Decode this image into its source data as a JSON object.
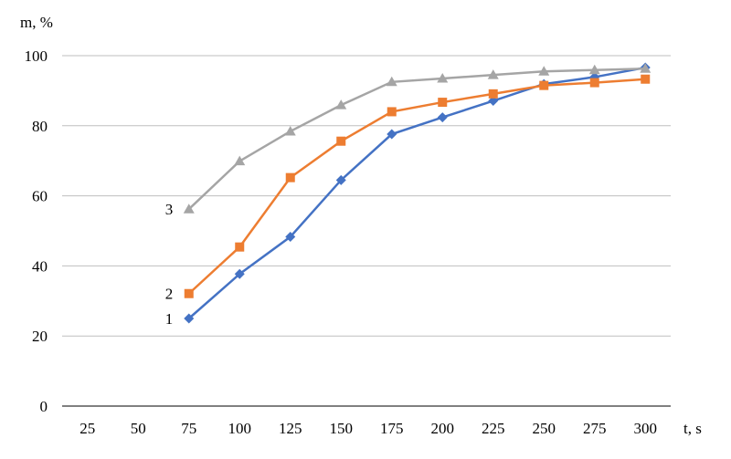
{
  "chart_data": {
    "type": "line",
    "ylabel": "m, %",
    "xlabel": "t, s",
    "x_ticks": [
      "25",
      "50",
      "75",
      "100",
      "125",
      "150",
      "175",
      "200",
      "225",
      "250",
      "275",
      "300"
    ],
    "y_ticks": [
      "0",
      "20",
      "40",
      "60",
      "80",
      "100"
    ],
    "ylim": [
      0,
      100
    ],
    "grid": true,
    "series": [
      {
        "name": "1",
        "color": "#4472C4",
        "marker": "diamond",
        "x": [
          75,
          100,
          125,
          150,
          175,
          200,
          225,
          250,
          275,
          300
        ],
        "values": [
          25,
          37.7,
          48.3,
          64.5,
          77.6,
          82.4,
          87.1,
          91.9,
          93.9,
          96.6
        ]
      },
      {
        "name": "2",
        "color": "#ED7D31",
        "marker": "square",
        "x": [
          75,
          100,
          125,
          150,
          175,
          200,
          225,
          250,
          275,
          300
        ],
        "values": [
          32.1,
          45.4,
          65.2,
          75.6,
          84.0,
          86.7,
          89.1,
          91.5,
          92.3,
          93.3
        ]
      },
      {
        "name": "3",
        "color": "#A5A5A5",
        "marker": "triangle",
        "x": [
          75,
          100,
          125,
          150,
          175,
          200,
          225,
          250,
          275,
          300
        ],
        "values": [
          56.2,
          69.9,
          78.4,
          85.9,
          92.5,
          93.5,
          94.5,
          95.5,
          95.9,
          96.3
        ]
      }
    ]
  }
}
